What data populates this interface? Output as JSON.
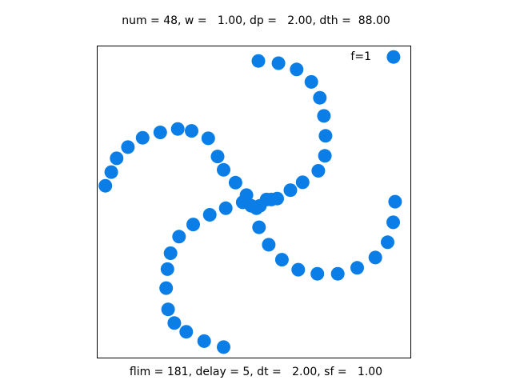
{
  "header": {
    "title": "num = 48, w =   1.00, dp =   2.00, dth =  88.00"
  },
  "footer": {
    "caption": "flim = 181, delay = 5, dt =   2.00, sf =   1.00"
  },
  "colors": {
    "marker": "#0a7ee6",
    "frame": "#000000",
    "background": "#ffffff"
  },
  "chart_data": {
    "type": "scatter",
    "title": "num = 48, w =   1.00, dp =   2.00, dth =  88.00",
    "xlabel": "flim = 181, delay = 5, dt =   2.00, sf =   1.00",
    "ylabel": "",
    "xlim": [
      0,
      100
    ],
    "ylim": [
      0,
      100
    ],
    "grid": false,
    "ticks": false,
    "legend": {
      "placement": "top-right",
      "entries": [
        {
          "label": "f=1"
        }
      ]
    },
    "series": [
      {
        "name": "f=1",
        "points": [
          [
            51.9,
            48.8
          ],
          [
            54.0,
            50.8
          ],
          [
            55.5,
            50.8
          ],
          [
            57.4,
            51.1
          ],
          [
            61.6,
            53.8
          ],
          [
            65.5,
            56.3
          ],
          [
            70.5,
            60.0
          ],
          [
            72.6,
            64.8
          ],
          [
            72.8,
            71.2
          ],
          [
            72.3,
            77.6
          ],
          [
            71.0,
            83.4
          ],
          [
            68.3,
            88.5
          ],
          [
            63.6,
            92.5
          ],
          [
            57.8,
            94.5
          ],
          [
            51.4,
            95.2
          ],
          [
            49.1,
            48.8
          ],
          [
            46.4,
            49.9
          ],
          [
            41.0,
            48.0
          ],
          [
            35.9,
            45.9
          ],
          [
            30.6,
            42.8
          ],
          [
            26.1,
            38.9
          ],
          [
            23.4,
            33.6
          ],
          [
            22.4,
            28.5
          ],
          [
            22.0,
            22.4
          ],
          [
            22.6,
            15.6
          ],
          [
            24.6,
            11.2
          ],
          [
            28.4,
            8.4
          ],
          [
            34.1,
            5.4
          ],
          [
            40.3,
            3.5
          ],
          [
            50.8,
            48.0
          ],
          [
            51.6,
            41.9
          ],
          [
            54.7,
            36.3
          ],
          [
            58.9,
            31.5
          ],
          [
            64.1,
            28.3
          ],
          [
            70.2,
            27.0
          ],
          [
            76.7,
            27.0
          ],
          [
            82.9,
            28.9
          ],
          [
            88.7,
            32.2
          ],
          [
            92.6,
            37.1
          ],
          [
            94.4,
            43.5
          ],
          [
            95.0,
            50.1
          ],
          [
            94.5,
            96.5
          ],
          [
            47.6,
            52.2
          ],
          [
            44.1,
            56.2
          ],
          [
            40.3,
            60.3
          ],
          [
            38.4,
            64.6
          ],
          [
            35.4,
            70.4
          ],
          [
            30.1,
            72.8
          ],
          [
            25.7,
            73.4
          ],
          [
            20.1,
            72.3
          ],
          [
            14.5,
            70.6
          ],
          [
            9.8,
            67.6
          ],
          [
            6.2,
            64.0
          ],
          [
            4.5,
            59.6
          ],
          [
            2.6,
            55.2
          ]
        ]
      }
    ]
  }
}
